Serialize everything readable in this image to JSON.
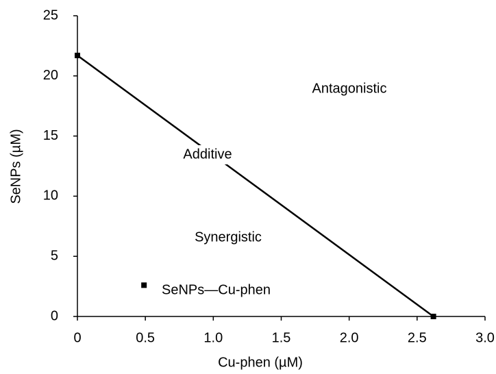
{
  "chart_data": {
    "type": "line",
    "xlabel": "Cu-phen (µM)",
    "ylabel": "SeNPs (µM)",
    "xlim": [
      0,
      3
    ],
    "ylim": [
      0,
      25
    ],
    "xticks": [
      0,
      0.5,
      {
        "value": 1,
        "label": "1.0"
      },
      1.5,
      {
        "value": 2,
        "label": "2.0"
      },
      2.5,
      {
        "value": 3,
        "label": "3.0"
      }
    ],
    "yticks": [
      0,
      5,
      10,
      15,
      20,
      25
    ],
    "series": [
      {
        "x": [
          0,
          2.62
        ],
        "values": [
          21.7,
          0
        ],
        "color": "#000000"
      },
      {
        "name": "SeNPs—Cu-phen",
        "x": [
          0.49
        ],
        "values": [
          2.6
        ],
        "color": "#000000"
      }
    ],
    "annotations": [
      "Antagonistic",
      "Additive",
      "Synergistic"
    ]
  }
}
